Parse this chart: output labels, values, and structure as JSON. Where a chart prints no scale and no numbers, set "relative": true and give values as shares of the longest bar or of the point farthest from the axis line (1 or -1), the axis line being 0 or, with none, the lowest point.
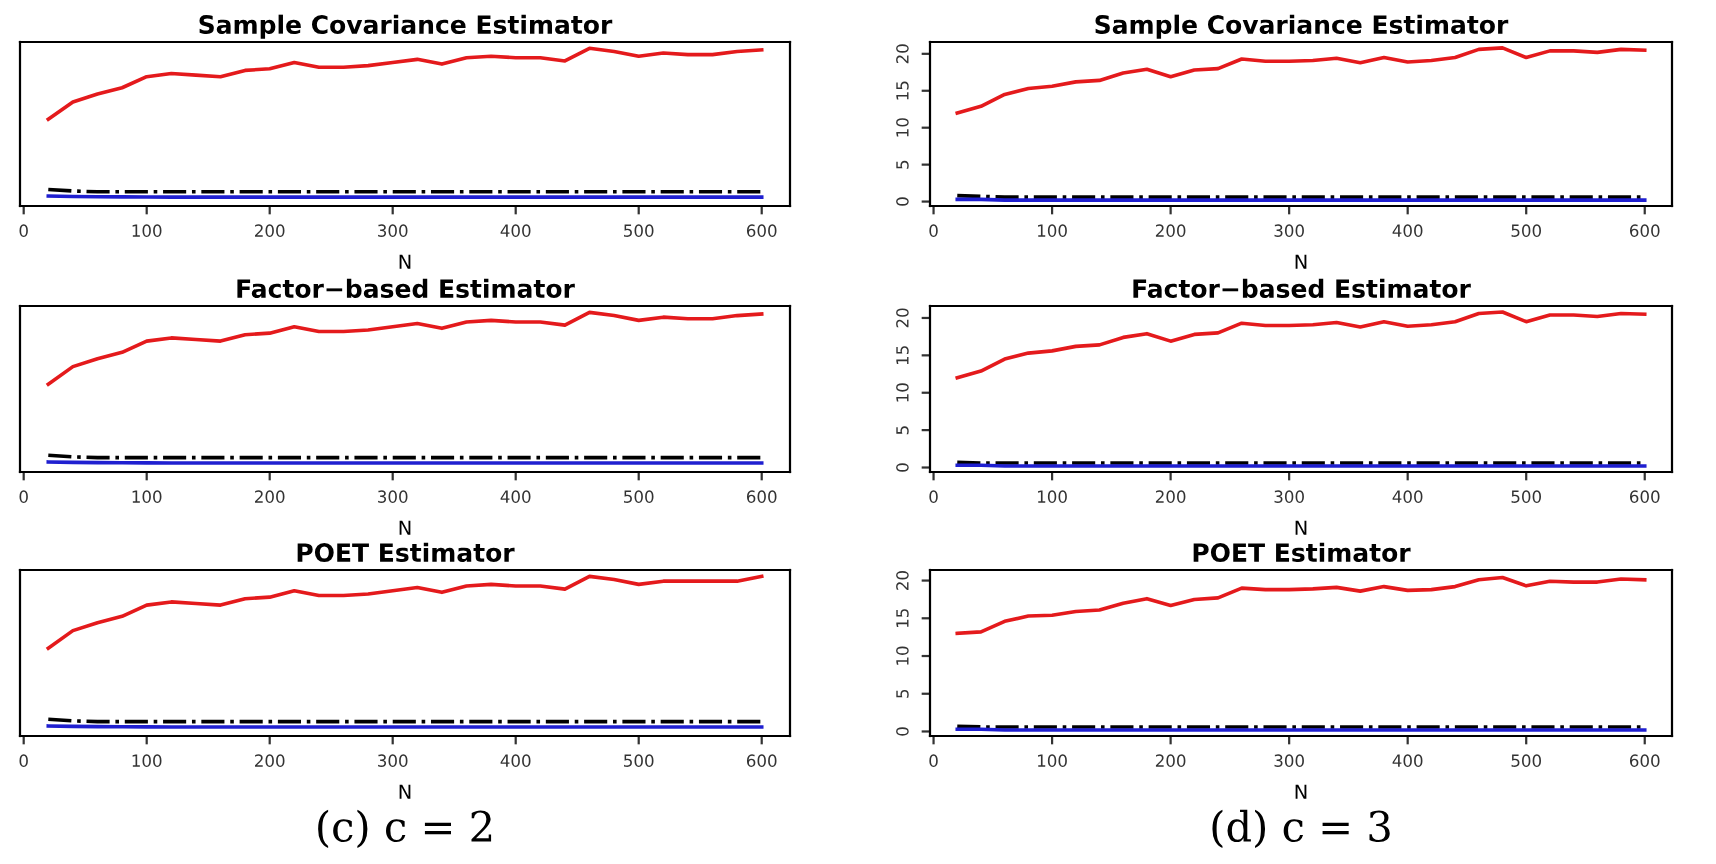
{
  "chart_data": [
    {
      "type": "line",
      "title": "Sample Covariance Estimator",
      "xlabel": "N",
      "relative": true,
      "tick_labels": "x",
      "grid": false,
      "marker": "none",
      "x": [
        20,
        40,
        60,
        80,
        100,
        120,
        140,
        160,
        180,
        200,
        220,
        240,
        260,
        280,
        300,
        320,
        340,
        360,
        380,
        400,
        420,
        440,
        460,
        480,
        500,
        520,
        540,
        560,
        580,
        600
      ],
      "xlim": [
        -3,
        623
      ],
      "xticks": [
        0,
        100,
        200,
        300,
        400,
        500,
        600
      ],
      "series": [
        {
          "color": "#e41a1c",
          "line_style": "solid",
          "values": [
            0.55,
            0.66,
            0.71,
            0.75,
            0.82,
            0.84,
            0.83,
            0.82,
            0.86,
            0.87,
            0.91,
            0.88,
            0.88,
            0.89,
            0.91,
            0.93,
            0.9,
            0.94,
            0.95,
            0.94,
            0.94,
            0.92,
            1.0,
            0.98,
            0.95,
            0.97,
            0.96,
            0.96,
            0.98,
            0.99
          ]
        },
        {
          "color": "#000000",
          "line_style": "dashed",
          "values": [
            0.105,
            0.095,
            0.09,
            0.09,
            0.09,
            0.09,
            0.09,
            0.09,
            0.09,
            0.09,
            0.09,
            0.09,
            0.09,
            0.09,
            0.09,
            0.09,
            0.09,
            0.09,
            0.09,
            0.09,
            0.09,
            0.09,
            0.09,
            0.09,
            0.09,
            0.09,
            0.09,
            0.09,
            0.09,
            0.09
          ]
        },
        {
          "color": "#1f1fd0",
          "line_style": "solid",
          "values": [
            0.063,
            0.06,
            0.059,
            0.058,
            0.057,
            0.056,
            0.056,
            0.056,
            0.056,
            0.056,
            0.056,
            0.056,
            0.056,
            0.056,
            0.056,
            0.056,
            0.056,
            0.056,
            0.056,
            0.056,
            0.056,
            0.056,
            0.056,
            0.056,
            0.056,
            0.056,
            0.056,
            0.056,
            0.056,
            0.056
          ]
        }
      ]
    },
    {
      "type": "line",
      "title": "Sample Covariance Estimator",
      "xlabel": "N",
      "grid": false,
      "marker": "none",
      "x": [
        20,
        40,
        60,
        80,
        100,
        120,
        140,
        160,
        180,
        200,
        220,
        240,
        260,
        280,
        300,
        320,
        340,
        360,
        380,
        400,
        420,
        440,
        460,
        480,
        500,
        520,
        540,
        560,
        580,
        600
      ],
      "xlim": [
        -3,
        623
      ],
      "xticks": [
        0,
        100,
        200,
        300,
        400,
        500,
        600
      ],
      "ylim": [
        -0.6,
        21.6
      ],
      "yticks": [
        0,
        5,
        10,
        15,
        20
      ],
      "series": [
        {
          "color": "#e41a1c",
          "line_style": "solid",
          "values": [
            12.0,
            12.9,
            14.5,
            15.3,
            15.6,
            16.2,
            16.4,
            17.4,
            17.9,
            16.9,
            17.8,
            18.0,
            19.3,
            19.0,
            19.0,
            19.1,
            19.4,
            18.8,
            19.5,
            18.9,
            19.1,
            19.5,
            20.6,
            20.8,
            19.5,
            20.4,
            20.4,
            20.2,
            20.6,
            20.5
          ]
        },
        {
          "color": "#000000",
          "line_style": "dashed",
          "values": [
            0.8,
            0.7,
            0.6,
            0.6,
            0.6,
            0.6,
            0.6,
            0.6,
            0.6,
            0.6,
            0.6,
            0.6,
            0.6,
            0.6,
            0.6,
            0.6,
            0.6,
            0.6,
            0.6,
            0.6,
            0.6,
            0.6,
            0.6,
            0.6,
            0.6,
            0.6,
            0.6,
            0.6,
            0.6,
            0.6
          ]
        },
        {
          "color": "#1f1fd0",
          "line_style": "solid",
          "values": [
            0.3,
            0.3,
            0.2,
            0.2,
            0.2,
            0.2,
            0.2,
            0.2,
            0.2,
            0.2,
            0.2,
            0.2,
            0.2,
            0.2,
            0.2,
            0.2,
            0.2,
            0.2,
            0.2,
            0.2,
            0.2,
            0.2,
            0.2,
            0.2,
            0.2,
            0.2,
            0.2,
            0.2,
            0.2,
            0.2
          ]
        }
      ]
    },
    {
      "type": "line",
      "title": "Factor−based Estimator",
      "xlabel": "N",
      "relative": true,
      "tick_labels": "x",
      "grid": false,
      "marker": "none",
      "x": [
        20,
        40,
        60,
        80,
        100,
        120,
        140,
        160,
        180,
        200,
        220,
        240,
        260,
        280,
        300,
        320,
        340,
        360,
        380,
        400,
        420,
        440,
        460,
        480,
        500,
        520,
        540,
        560,
        580,
        600
      ],
      "xlim": [
        -3,
        623
      ],
      "xticks": [
        0,
        100,
        200,
        300,
        400,
        500,
        600
      ],
      "series": [
        {
          "color": "#e41a1c",
          "line_style": "solid",
          "values": [
            0.55,
            0.66,
            0.71,
            0.75,
            0.82,
            0.84,
            0.83,
            0.82,
            0.86,
            0.87,
            0.91,
            0.88,
            0.88,
            0.89,
            0.91,
            0.93,
            0.9,
            0.94,
            0.95,
            0.94,
            0.94,
            0.92,
            1.0,
            0.98,
            0.95,
            0.97,
            0.96,
            0.96,
            0.98,
            0.99
          ]
        },
        {
          "color": "#000000",
          "line_style": "dashed",
          "values": [
            0.105,
            0.095,
            0.09,
            0.09,
            0.09,
            0.09,
            0.09,
            0.09,
            0.09,
            0.09,
            0.09,
            0.09,
            0.09,
            0.09,
            0.09,
            0.09,
            0.09,
            0.09,
            0.09,
            0.09,
            0.09,
            0.09,
            0.09,
            0.09,
            0.09,
            0.09,
            0.09,
            0.09,
            0.09,
            0.09
          ]
        },
        {
          "color": "#1f1fd0",
          "line_style": "solid",
          "values": [
            0.063,
            0.06,
            0.059,
            0.058,
            0.057,
            0.056,
            0.056,
            0.056,
            0.056,
            0.056,
            0.056,
            0.056,
            0.056,
            0.056,
            0.056,
            0.056,
            0.056,
            0.056,
            0.056,
            0.056,
            0.056,
            0.056,
            0.056,
            0.056,
            0.056,
            0.056,
            0.056,
            0.056,
            0.056,
            0.056
          ]
        }
      ]
    },
    {
      "type": "line",
      "title": "Factor−based Estimator",
      "xlabel": "N",
      "grid": false,
      "marker": "none",
      "x": [
        20,
        40,
        60,
        80,
        100,
        120,
        140,
        160,
        180,
        200,
        220,
        240,
        260,
        280,
        300,
        320,
        340,
        360,
        380,
        400,
        420,
        440,
        460,
        480,
        500,
        520,
        540,
        560,
        580,
        600
      ],
      "xlim": [
        -3,
        623
      ],
      "xticks": [
        0,
        100,
        200,
        300,
        400,
        500,
        600
      ],
      "ylim": [
        -0.6,
        21.6
      ],
      "yticks": [
        0,
        5,
        10,
        15,
        20
      ],
      "series": [
        {
          "color": "#e41a1c",
          "line_style": "solid",
          "values": [
            12.0,
            12.9,
            14.5,
            15.3,
            15.6,
            16.2,
            16.4,
            17.4,
            17.9,
            16.9,
            17.8,
            18.0,
            19.3,
            19.0,
            19.0,
            19.1,
            19.4,
            18.8,
            19.5,
            18.9,
            19.1,
            19.5,
            20.6,
            20.8,
            19.5,
            20.4,
            20.4,
            20.2,
            20.6,
            20.5
          ]
        },
        {
          "color": "#000000",
          "line_style": "dashed",
          "values": [
            0.7,
            0.6,
            0.6,
            0.6,
            0.6,
            0.6,
            0.6,
            0.6,
            0.6,
            0.6,
            0.6,
            0.6,
            0.6,
            0.6,
            0.6,
            0.6,
            0.6,
            0.6,
            0.6,
            0.6,
            0.6,
            0.6,
            0.6,
            0.6,
            0.6,
            0.6,
            0.6,
            0.6,
            0.6,
            0.6
          ]
        },
        {
          "color": "#1f1fd0",
          "line_style": "solid",
          "values": [
            0.3,
            0.3,
            0.2,
            0.2,
            0.2,
            0.2,
            0.2,
            0.2,
            0.2,
            0.2,
            0.2,
            0.2,
            0.2,
            0.2,
            0.2,
            0.2,
            0.2,
            0.2,
            0.2,
            0.2,
            0.2,
            0.2,
            0.2,
            0.2,
            0.2,
            0.2,
            0.2,
            0.2,
            0.2,
            0.2
          ]
        }
      ]
    },
    {
      "type": "line",
      "title": "POET Estimator",
      "xlabel": "N",
      "relative": true,
      "tick_labels": "x",
      "grid": false,
      "marker": "none",
      "annotations": [
        "(c) c = 2"
      ],
      "x": [
        20,
        40,
        60,
        80,
        100,
        120,
        140,
        160,
        180,
        200,
        220,
        240,
        260,
        280,
        300,
        320,
        340,
        360,
        380,
        400,
        420,
        440,
        460,
        480,
        500,
        520,
        540,
        560,
        580,
        600
      ],
      "xlim": [
        -3,
        623
      ],
      "xticks": [
        0,
        100,
        200,
        300,
        400,
        500,
        600
      ],
      "series": [
        {
          "color": "#e41a1c",
          "line_style": "solid",
          "values": [
            0.55,
            0.66,
            0.71,
            0.75,
            0.82,
            0.84,
            0.83,
            0.82,
            0.86,
            0.87,
            0.91,
            0.88,
            0.88,
            0.89,
            0.91,
            0.93,
            0.9,
            0.94,
            0.95,
            0.94,
            0.94,
            0.92,
            1.0,
            0.98,
            0.95,
            0.97,
            0.97,
            0.97,
            0.97,
            1.0
          ]
        },
        {
          "color": "#000000",
          "line_style": "dashed",
          "values": [
            0.105,
            0.095,
            0.09,
            0.09,
            0.09,
            0.09,
            0.09,
            0.09,
            0.09,
            0.09,
            0.09,
            0.09,
            0.09,
            0.09,
            0.09,
            0.09,
            0.09,
            0.09,
            0.09,
            0.09,
            0.09,
            0.09,
            0.09,
            0.09,
            0.09,
            0.09,
            0.09,
            0.09,
            0.09,
            0.09
          ]
        },
        {
          "color": "#1f1fd0",
          "line_style": "solid",
          "values": [
            0.063,
            0.06,
            0.059,
            0.058,
            0.057,
            0.056,
            0.056,
            0.056,
            0.056,
            0.056,
            0.056,
            0.056,
            0.056,
            0.056,
            0.056,
            0.056,
            0.056,
            0.056,
            0.056,
            0.056,
            0.056,
            0.056,
            0.056,
            0.056,
            0.056,
            0.056,
            0.056,
            0.056,
            0.056,
            0.056
          ]
        }
      ]
    },
    {
      "type": "line",
      "title": "POET Estimator",
      "xlabel": "N",
      "grid": false,
      "marker": "none",
      "annotations": [
        "(d) c = 3"
      ],
      "x": [
        20,
        40,
        60,
        80,
        100,
        120,
        140,
        160,
        180,
        200,
        220,
        240,
        260,
        280,
        300,
        320,
        340,
        360,
        380,
        400,
        420,
        440,
        460,
        480,
        500,
        520,
        540,
        560,
        580,
        600
      ],
      "xlim": [
        -3,
        623
      ],
      "xticks": [
        0,
        100,
        200,
        300,
        400,
        500,
        600
      ],
      "ylim": [
        -0.6,
        21.4
      ],
      "yticks": [
        0,
        5,
        10,
        15,
        20
      ],
      "series": [
        {
          "color": "#e41a1c",
          "line_style": "solid",
          "values": [
            13.0,
            13.2,
            14.6,
            15.3,
            15.4,
            15.9,
            16.1,
            17.0,
            17.6,
            16.7,
            17.5,
            17.7,
            19.0,
            18.8,
            18.8,
            18.9,
            19.1,
            18.6,
            19.2,
            18.7,
            18.8,
            19.2,
            20.1,
            20.4,
            19.3,
            19.9,
            19.8,
            19.8,
            20.2,
            20.1
          ]
        },
        {
          "color": "#000000",
          "line_style": "dashed",
          "values": [
            0.7,
            0.6,
            0.6,
            0.6,
            0.6,
            0.6,
            0.6,
            0.6,
            0.6,
            0.6,
            0.6,
            0.6,
            0.6,
            0.6,
            0.6,
            0.6,
            0.6,
            0.6,
            0.6,
            0.6,
            0.6,
            0.6,
            0.6,
            0.6,
            0.6,
            0.6,
            0.6,
            0.6,
            0.6,
            0.6
          ]
        },
        {
          "color": "#1f1fd0",
          "line_style": "solid",
          "values": [
            0.3,
            0.3,
            0.2,
            0.2,
            0.2,
            0.2,
            0.2,
            0.2,
            0.2,
            0.2,
            0.2,
            0.2,
            0.2,
            0.2,
            0.2,
            0.2,
            0.2,
            0.2,
            0.2,
            0.2,
            0.2,
            0.2,
            0.2,
            0.2,
            0.2,
            0.2,
            0.2,
            0.2,
            0.2,
            0.2
          ]
        }
      ]
    }
  ]
}
